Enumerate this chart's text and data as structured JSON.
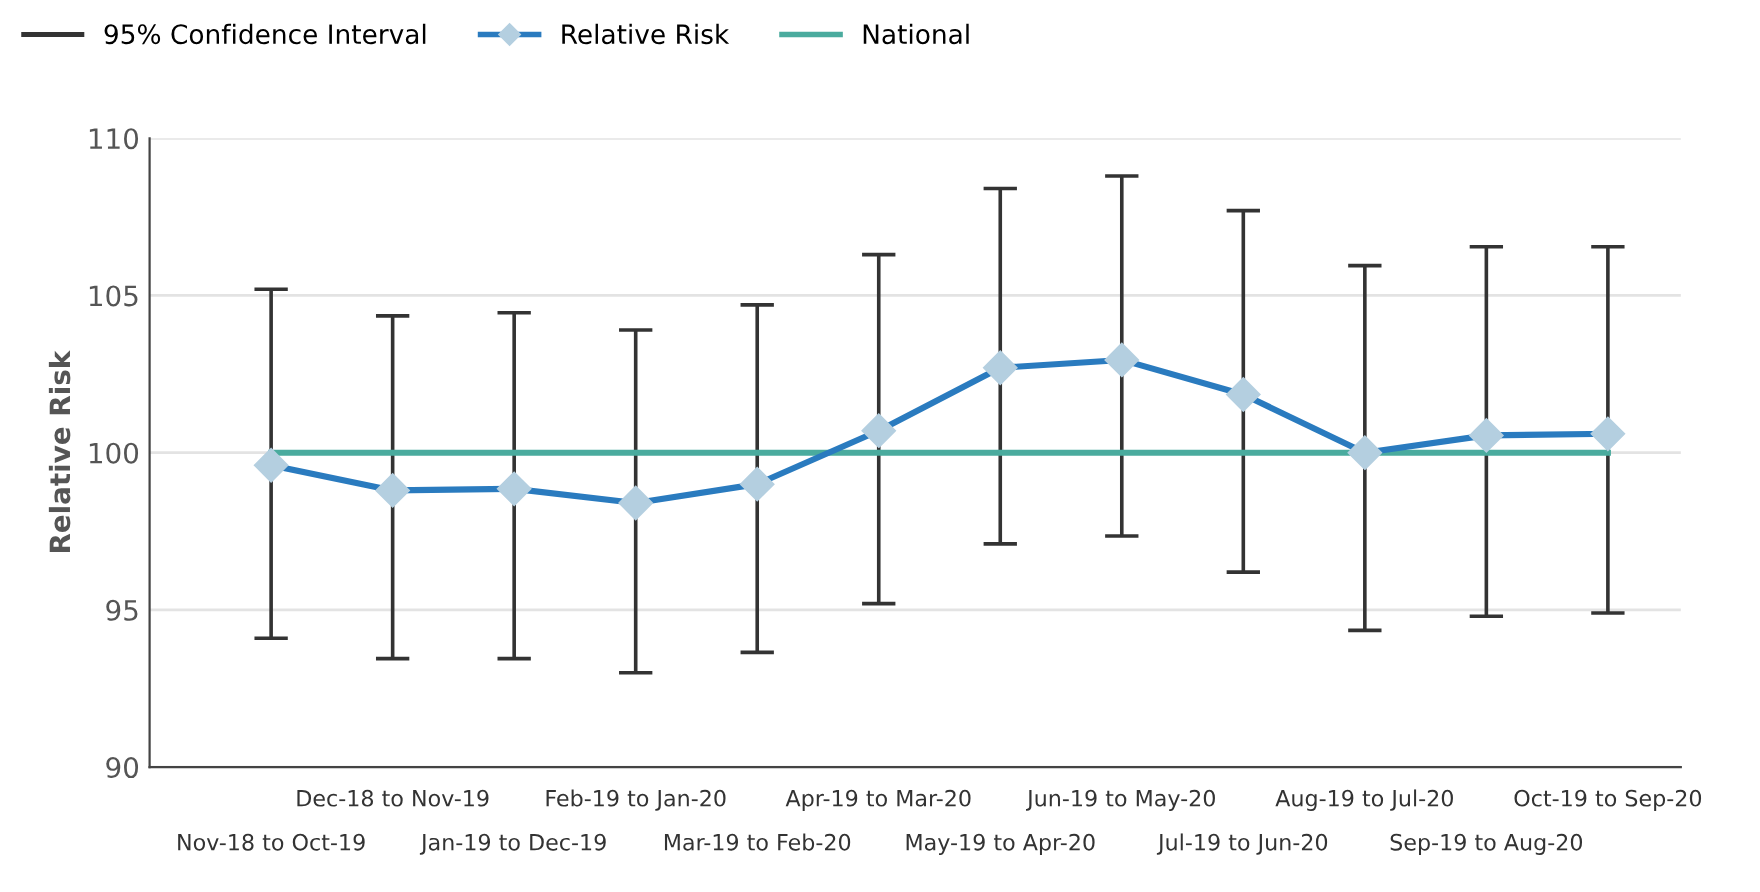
{
  "chart_data": {
    "type": "line",
    "ylabel": "Relative Risk",
    "annotations": [
      "95% Confidence Interval"
    ],
    "categories": [
      "Nov-18 to Oct-19",
      "Dec-18 to Nov-19",
      "Jan-19 to Dec-19",
      "Feb-19 to Jan-20",
      "Mar-19 to Feb-20",
      "Apr-19 to Mar-20",
      "May-19 to Apr-20",
      "Jun-19 to May-20",
      "Jul-19 to Jun-20",
      "Aug-19 to Jul-20",
      "Sep-19 to Aug-20",
      "Oct-19 to Sep-20"
    ],
    "series": [
      {
        "name": "Relative Risk",
        "color": "#2a7bbf",
        "marker": "diamond",
        "values": [
          99.6,
          98.8,
          98.85,
          98.4,
          99.0,
          100.7,
          102.7,
          102.95,
          101.85,
          100.0,
          100.55,
          100.6
        ],
        "errors": [
          [
            94.1,
            105.2
          ],
          [
            93.45,
            104.35
          ],
          [
            93.45,
            104.45
          ],
          [
            93.0,
            103.9
          ],
          [
            93.65,
            104.7
          ],
          [
            95.2,
            106.3
          ],
          [
            97.1,
            108.4
          ],
          [
            97.35,
            108.8
          ],
          [
            96.2,
            107.7
          ],
          [
            94.35,
            105.95
          ],
          [
            94.8,
            106.55
          ],
          [
            94.9,
            106.55
          ]
        ]
      },
      {
        "name": "National",
        "color": "#4aab9e",
        "marker": "none",
        "values": [
          100,
          100,
          100,
          100,
          100,
          100,
          100,
          100,
          100,
          100,
          100,
          100
        ]
      }
    ],
    "ylim": [
      90,
      110
    ],
    "yticks": [
      90,
      95,
      100,
      105,
      110
    ],
    "grid": "y",
    "legend": "top left"
  }
}
